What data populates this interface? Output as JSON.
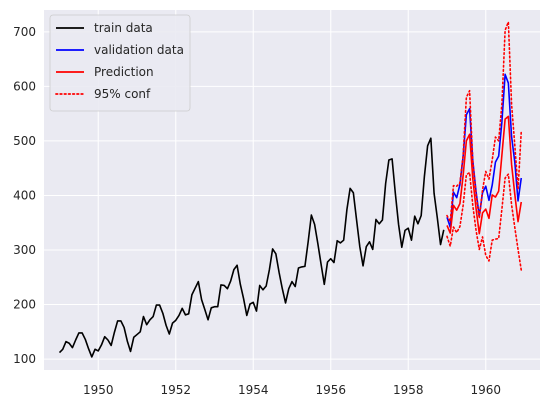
{
  "chart_data": {
    "type": "line",
    "title": "",
    "xlabel": "",
    "ylabel": "",
    "xlim": [
      1948.6,
      1961.4
    ],
    "ylim": [
      80,
      740
    ],
    "xticks": [
      1950,
      1952,
      1954,
      1956,
      1958,
      1960
    ],
    "yticks": [
      100,
      200,
      300,
      400,
      500,
      600,
      700
    ],
    "grid": true,
    "background": "#eaeaf2",
    "legend": {
      "placement": "top-left"
    },
    "series": [
      {
        "name": "train data",
        "color": "#000000",
        "style": "solid",
        "x_start": 1949.0,
        "x_step": 0.0833333,
        "values": [
          112,
          118,
          132,
          129,
          121,
          135,
          148,
          148,
          136,
          119,
          104,
          118,
          115,
          126,
          141,
          135,
          125,
          149,
          170,
          170,
          158,
          133,
          114,
          140,
          145,
          150,
          178,
          163,
          172,
          178,
          199,
          199,
          184,
          162,
          146,
          166,
          171,
          180,
          193,
          181,
          183,
          218,
          230,
          242,
          209,
          191,
          172,
          194,
          196,
          196,
          236,
          235,
          229,
          243,
          264,
          272,
          237,
          211,
          180,
          201,
          204,
          188,
          235,
          227,
          234,
          264,
          302,
          293,
          259,
          229,
          203,
          229,
          242,
          233,
          267,
          269,
          270,
          315,
          364,
          347,
          312,
          274,
          237,
          278,
          284,
          277,
          317,
          313,
          318,
          374,
          413,
          405,
          355,
          306,
          271,
          306,
          315,
          301,
          356,
          348,
          355,
          422,
          465,
          467,
          404,
          347,
          305,
          336,
          340,
          318,
          362,
          348,
          363,
          435,
          491,
          505,
          404,
          359,
          310,
          337
        ]
      },
      {
        "name": "validation data",
        "color": "#0000ff",
        "style": "solid",
        "x_start": 1959.0,
        "x_step": 0.0833333,
        "values": [
          360,
          342,
          406,
          396,
          420,
          472,
          548,
          559,
          463,
          407,
          362,
          405,
          417,
          391,
          419,
          461,
          472,
          535,
          622,
          606,
          508,
          461,
          390,
          432
        ]
      },
      {
        "name": "Prediction",
        "color": "#ff0000",
        "style": "solid",
        "x_start": 1959.0,
        "x_step": 0.0833333,
        "values": [
          345,
          331,
          382,
          373,
          385,
          437,
          500,
          512,
          430,
          376,
          330,
          368,
          375,
          358,
          401,
          397,
          408,
          474,
          540,
          545,
          457,
          402,
          352,
          388
        ]
      },
      {
        "name": "95% conf",
        "color": "#ff0000",
        "style": "dotted",
        "x_start": 1959.0,
        "x_step": 0.0833333,
        "values": [
          363,
          352,
          418,
          417,
          423,
          474,
          580,
          592,
          462,
          402,
          358,
          410,
          444,
          430,
          465,
          507,
          500,
          568,
          703,
          718,
          567,
          492,
          411,
          518
        ]
      },
      {
        "name": "",
        "color": "#ff0000",
        "style": "dotted",
        "x_start": 1959.0,
        "x_step": 0.0833333,
        "values": [
          325,
          307,
          342,
          332,
          343,
          382,
          438,
          442,
          381,
          336,
          301,
          324,
          290,
          280,
          318,
          320,
          321,
          375,
          432,
          439,
          383,
          341,
          301,
          263
        ]
      }
    ]
  }
}
